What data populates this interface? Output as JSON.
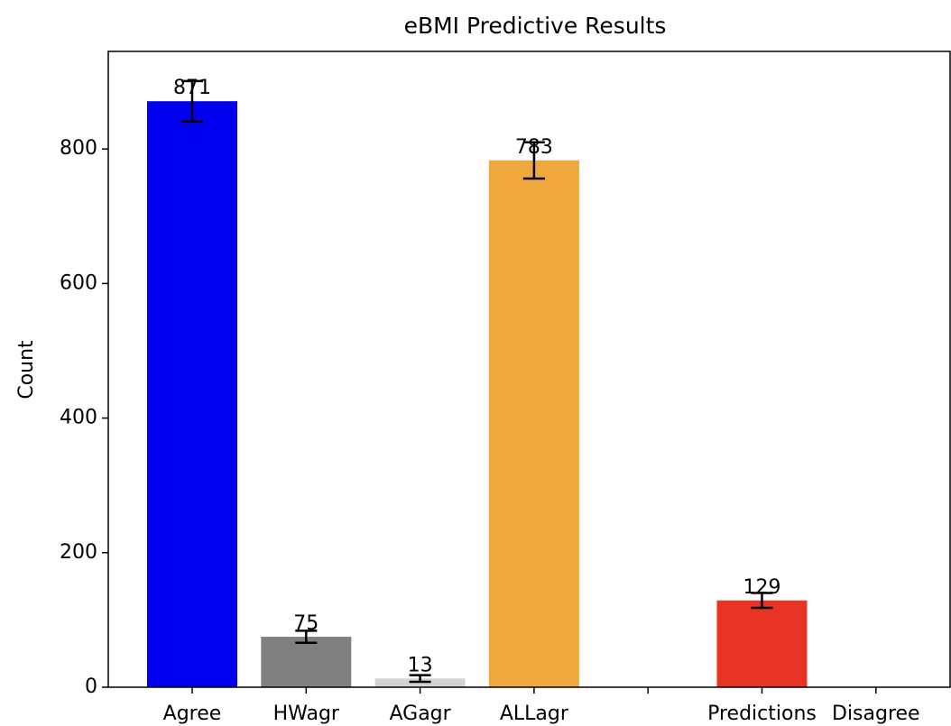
{
  "chart_data": {
    "type": "bar",
    "title": "eBMI Predictive Results",
    "y_label": "Count",
    "categories": [
      "Agree",
      "HWagr",
      "AGagr",
      "ALLagr",
      null,
      "Predictions",
      "Disagree"
    ],
    "values": [
      871,
      75,
      13,
      783,
      null,
      129,
      null
    ],
    "errors": [
      30,
      9,
      5,
      27,
      null,
      11,
      null
    ],
    "colors": [
      "#0000ee",
      "#808080",
      "#d3d3d3",
      "#f0a83c",
      null,
      "#e83424",
      null
    ],
    "ylim": [
      0,
      945
    ],
    "yticks": [
      0,
      200,
      400,
      600,
      800
    ],
    "grid": false
  }
}
